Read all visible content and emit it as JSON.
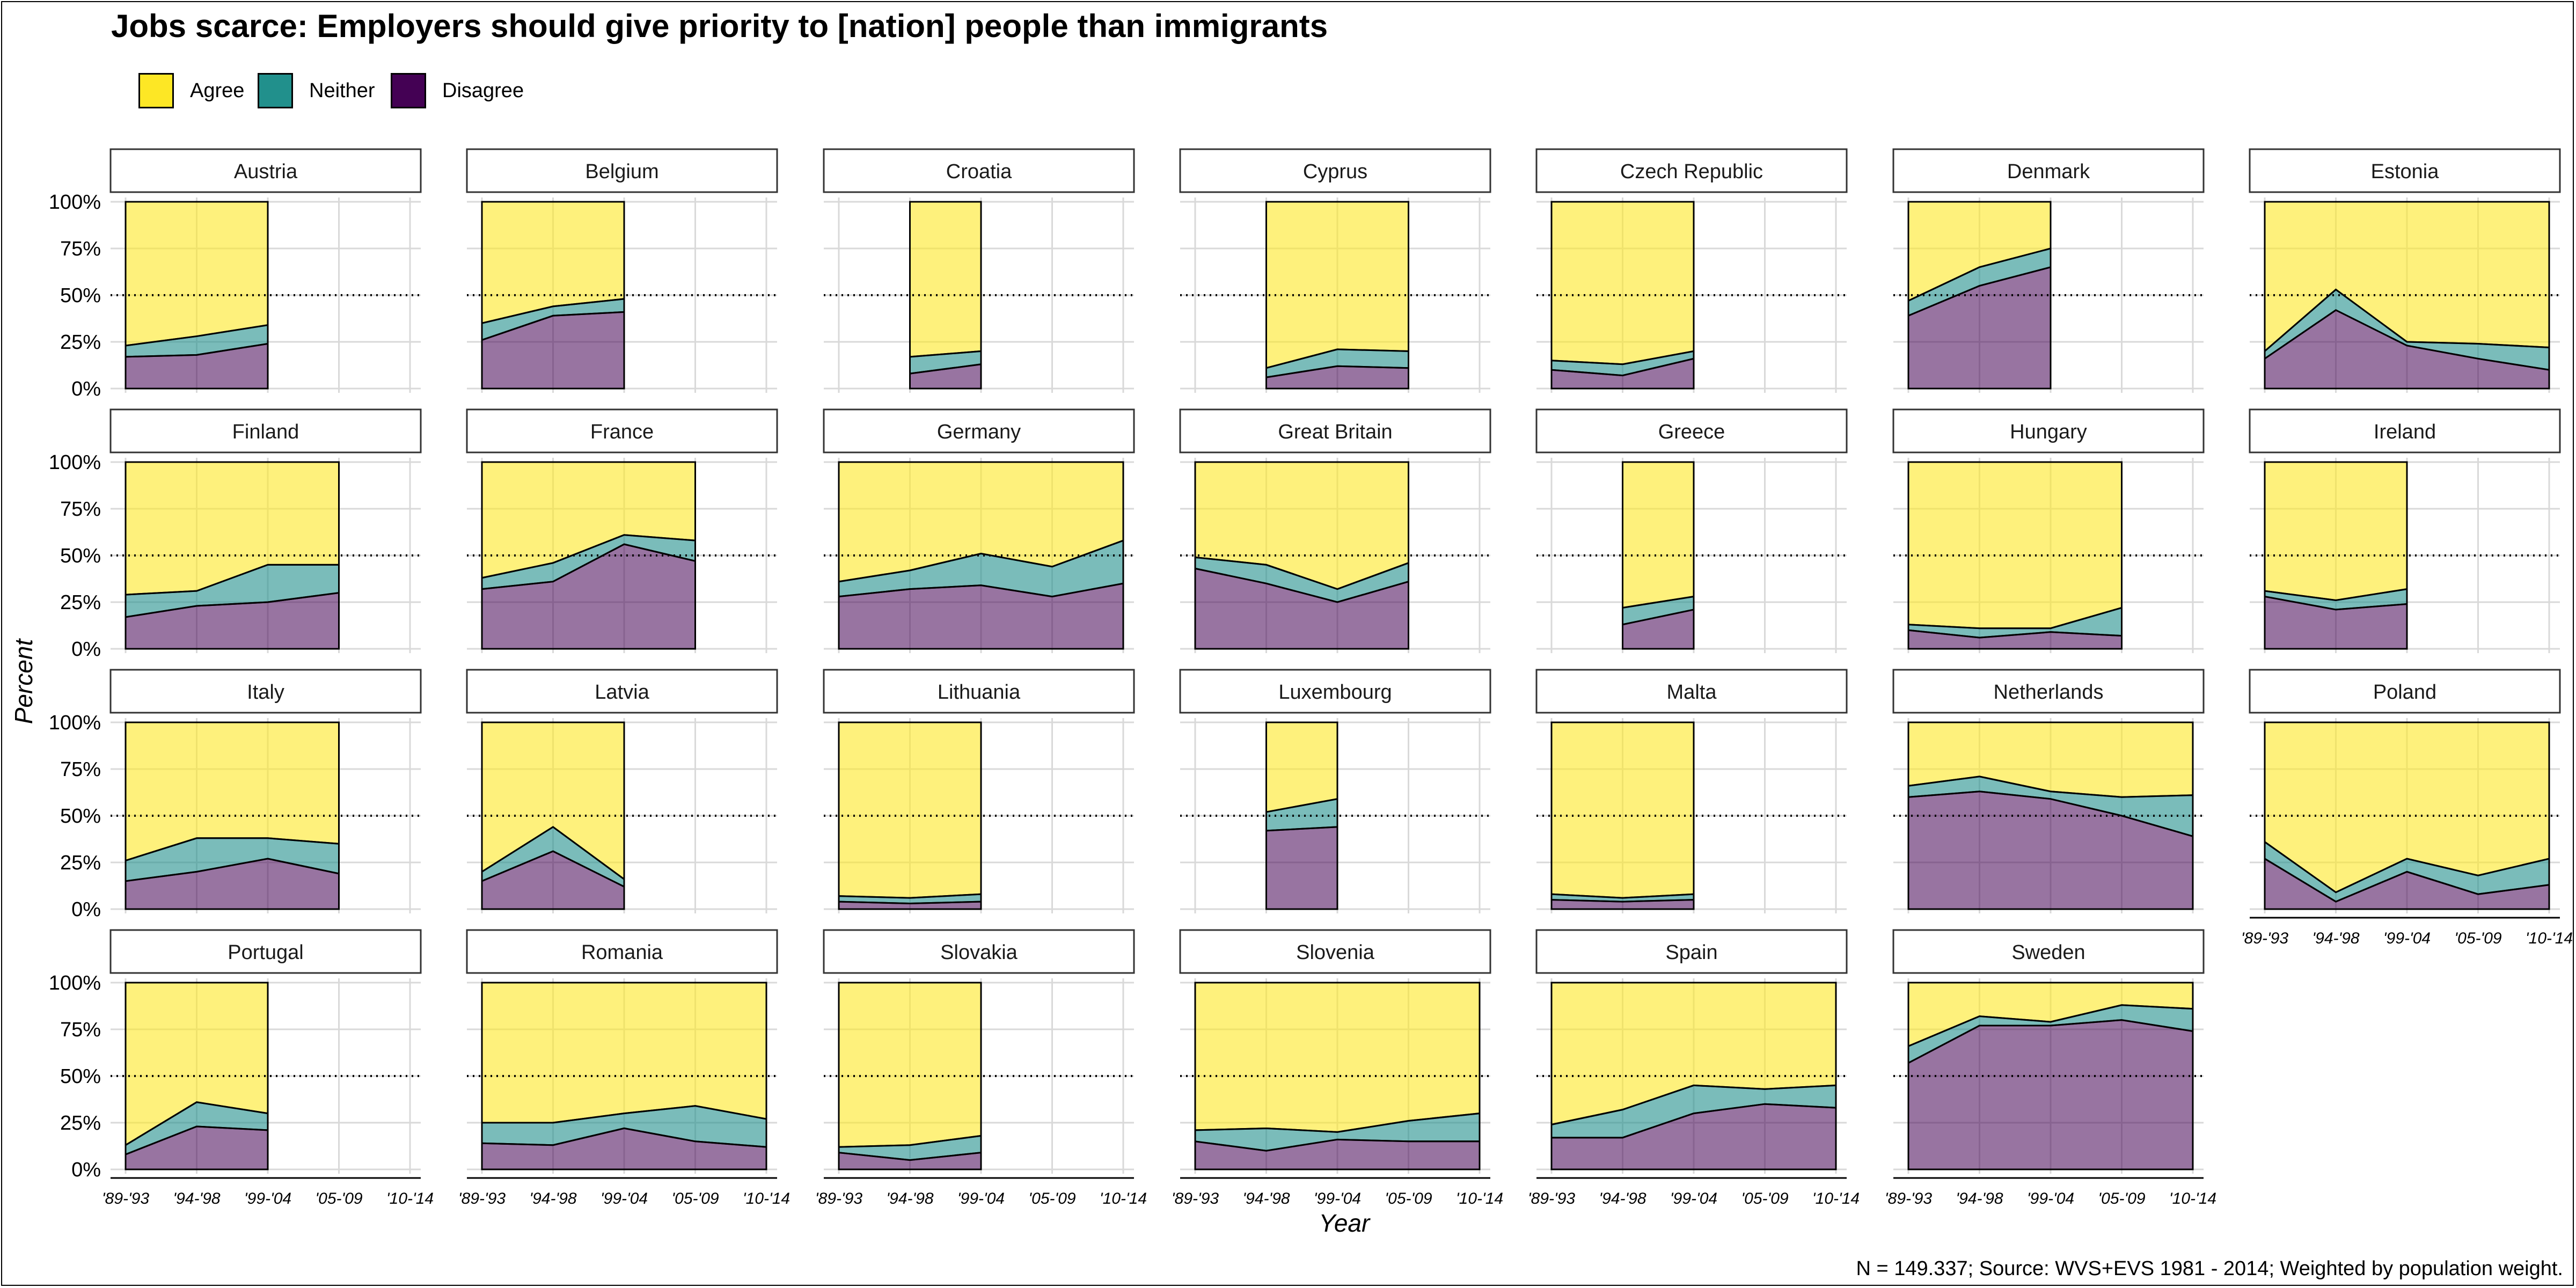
{
  "title": "Jobs scarce: Employers should give priority to [nation] people than immigrants",
  "caption": "N = 149.337; Source: WVS+EVS 1981 - 2014; Weighted by population weight.",
  "legend": [
    {
      "label": "Agree",
      "color": "#FDE725"
    },
    {
      "label": "Neither",
      "color": "#21908C"
    },
    {
      "label": "Disagree",
      "color": "#440154"
    }
  ],
  "chart_data": {
    "type": "area",
    "stacked": true,
    "facets": true,
    "xlabel": "Year",
    "ylabel": "Percent",
    "x": [
      "'89-'93",
      "'94-'98",
      "'99-'04",
      "'05-'09",
      "'10-'14"
    ],
    "y_ticks": [
      "0%",
      "25%",
      "50%",
      "75%",
      "100%"
    ],
    "ylim": [
      0,
      100
    ],
    "reference_line": 50,
    "series_order": [
      "Disagree",
      "Neither",
      "Agree"
    ],
    "panels": [
      {
        "country": "Austria",
        "points": [
          {
            "x": "'89-'93",
            "disagree": 17,
            "neither": 6
          },
          {
            "x": "'94-'98",
            "disagree": 18,
            "neither": 10
          },
          {
            "x": "'99-'04",
            "disagree": 24,
            "neither": 10
          }
        ]
      },
      {
        "country": "Belgium",
        "points": [
          {
            "x": "'89-'93",
            "disagree": 26,
            "neither": 9
          },
          {
            "x": "'94-'98",
            "disagree": 39,
            "neither": 5
          },
          {
            "x": "'99-'04",
            "disagree": 41,
            "neither": 7
          }
        ]
      },
      {
        "country": "Croatia",
        "points": [
          {
            "x": "'94-'98",
            "disagree": 8,
            "neither": 9
          },
          {
            "x": "'99-'04",
            "disagree": 13,
            "neither": 7
          }
        ]
      },
      {
        "country": "Cyprus",
        "points": [
          {
            "x": "'94-'98",
            "disagree": 6,
            "neither": 5
          },
          {
            "x": "'99-'04",
            "disagree": 12,
            "neither": 9
          },
          {
            "x": "'05-'09",
            "disagree": 11,
            "neither": 9
          }
        ]
      },
      {
        "country": "Czech Republic",
        "points": [
          {
            "x": "'89-'93",
            "disagree": 10,
            "neither": 5
          },
          {
            "x": "'94-'98",
            "disagree": 7,
            "neither": 6
          },
          {
            "x": "'99-'04",
            "disagree": 16,
            "neither": 4
          }
        ]
      },
      {
        "country": "Denmark",
        "points": [
          {
            "x": "'89-'93",
            "disagree": 39,
            "neither": 8
          },
          {
            "x": "'94-'98",
            "disagree": 55,
            "neither": 10
          },
          {
            "x": "'99-'04",
            "disagree": 65,
            "neither": 10
          }
        ]
      },
      {
        "country": "Estonia",
        "points": [
          {
            "x": "'89-'93",
            "disagree": 16,
            "neither": 4
          },
          {
            "x": "'94-'98",
            "disagree": 42,
            "neither": 11
          },
          {
            "x": "'99-'04",
            "disagree": 23,
            "neither": 2
          },
          {
            "x": "'05-'09",
            "disagree": 16,
            "neither": 8
          },
          {
            "x": "'10-'14",
            "disagree": 10,
            "neither": 12
          }
        ]
      },
      {
        "country": "Finland",
        "points": [
          {
            "x": "'89-'93",
            "disagree": 17,
            "neither": 12
          },
          {
            "x": "'94-'98",
            "disagree": 23,
            "neither": 8
          },
          {
            "x": "'99-'04",
            "disagree": 25,
            "neither": 20
          },
          {
            "x": "'05-'09",
            "disagree": 30,
            "neither": 15
          }
        ]
      },
      {
        "country": "France",
        "points": [
          {
            "x": "'89-'93",
            "disagree": 32,
            "neither": 6
          },
          {
            "x": "'94-'98",
            "disagree": 36,
            "neither": 10
          },
          {
            "x": "'99-'04",
            "disagree": 56,
            "neither": 5
          },
          {
            "x": "'05-'09",
            "disagree": 47,
            "neither": 11
          }
        ]
      },
      {
        "country": "Germany",
        "points": [
          {
            "x": "'89-'93",
            "disagree": 28,
            "neither": 8
          },
          {
            "x": "'94-'98",
            "disagree": 32,
            "neither": 10
          },
          {
            "x": "'99-'04",
            "disagree": 34,
            "neither": 17
          },
          {
            "x": "'05-'09",
            "disagree": 28,
            "neither": 16
          },
          {
            "x": "'10-'14",
            "disagree": 35,
            "neither": 23
          }
        ]
      },
      {
        "country": "Great Britain",
        "points": [
          {
            "x": "'89-'93",
            "disagree": 43,
            "neither": 6
          },
          {
            "x": "'94-'98",
            "disagree": 35,
            "neither": 10
          },
          {
            "x": "'99-'04",
            "disagree": 25,
            "neither": 7
          },
          {
            "x": "'05-'09",
            "disagree": 36,
            "neither": 10
          }
        ]
      },
      {
        "country": "Greece",
        "points": [
          {
            "x": "'94-'98",
            "disagree": 13,
            "neither": 9
          },
          {
            "x": "'99-'04",
            "disagree": 21,
            "neither": 7
          }
        ]
      },
      {
        "country": "Hungary",
        "points": [
          {
            "x": "'89-'93",
            "disagree": 10,
            "neither": 3
          },
          {
            "x": "'94-'98",
            "disagree": 6,
            "neither": 5
          },
          {
            "x": "'99-'04",
            "disagree": 9,
            "neither": 2
          },
          {
            "x": "'05-'09",
            "disagree": 7,
            "neither": 15
          }
        ]
      },
      {
        "country": "Ireland",
        "points": [
          {
            "x": "'89-'93",
            "disagree": 28,
            "neither": 3
          },
          {
            "x": "'94-'98",
            "disagree": 21,
            "neither": 5
          },
          {
            "x": "'99-'04",
            "disagree": 24,
            "neither": 8
          }
        ]
      },
      {
        "country": "Italy",
        "points": [
          {
            "x": "'89-'93",
            "disagree": 15,
            "neither": 11
          },
          {
            "x": "'94-'98",
            "disagree": 20,
            "neither": 18
          },
          {
            "x": "'99-'04",
            "disagree": 27,
            "neither": 11
          },
          {
            "x": "'05-'09",
            "disagree": 19,
            "neither": 16
          }
        ]
      },
      {
        "country": "Latvia",
        "points": [
          {
            "x": "'89-'93",
            "disagree": 15,
            "neither": 5
          },
          {
            "x": "'94-'98",
            "disagree": 31,
            "neither": 13
          },
          {
            "x": "'99-'04",
            "disagree": 12,
            "neither": 4
          }
        ]
      },
      {
        "country": "Lithuania",
        "points": [
          {
            "x": "'89-'93",
            "disagree": 4,
            "neither": 3
          },
          {
            "x": "'94-'98",
            "disagree": 3,
            "neither": 3
          },
          {
            "x": "'99-'04",
            "disagree": 4,
            "neither": 4
          }
        ]
      },
      {
        "country": "Luxembourg",
        "points": [
          {
            "x": "'94-'98",
            "disagree": 42,
            "neither": 10
          },
          {
            "x": "'99-'04",
            "disagree": 44,
            "neither": 15
          }
        ]
      },
      {
        "country": "Malta",
        "points": [
          {
            "x": "'89-'93",
            "disagree": 5,
            "neither": 3
          },
          {
            "x": "'94-'98",
            "disagree": 4,
            "neither": 2
          },
          {
            "x": "'99-'04",
            "disagree": 5,
            "neither": 3
          }
        ]
      },
      {
        "country": "Netherlands",
        "points": [
          {
            "x": "'89-'93",
            "disagree": 60,
            "neither": 6
          },
          {
            "x": "'94-'98",
            "disagree": 63,
            "neither": 8
          },
          {
            "x": "'99-'04",
            "disagree": 59,
            "neither": 4
          },
          {
            "x": "'05-'09",
            "disagree": 50,
            "neither": 10
          },
          {
            "x": "'10-'14",
            "disagree": 39,
            "neither": 22
          }
        ]
      },
      {
        "country": "Poland",
        "points": [
          {
            "x": "'89-'93",
            "disagree": 27,
            "neither": 9
          },
          {
            "x": "'94-'98",
            "disagree": 4,
            "neither": 5
          },
          {
            "x": "'99-'04",
            "disagree": 20,
            "neither": 7
          },
          {
            "x": "'05-'09",
            "disagree": 8,
            "neither": 10
          },
          {
            "x": "'10-'14",
            "disagree": 13,
            "neither": 14
          }
        ]
      },
      {
        "country": "Portugal",
        "points": [
          {
            "x": "'89-'93",
            "disagree": 8,
            "neither": 5
          },
          {
            "x": "'94-'98",
            "disagree": 23,
            "neither": 13
          },
          {
            "x": "'99-'04",
            "disagree": 21,
            "neither": 9
          }
        ]
      },
      {
        "country": "Romania",
        "points": [
          {
            "x": "'89-'93",
            "disagree": 14,
            "neither": 11
          },
          {
            "x": "'94-'98",
            "disagree": 13,
            "neither": 12
          },
          {
            "x": "'99-'04",
            "disagree": 22,
            "neither": 8
          },
          {
            "x": "'05-'09",
            "disagree": 15,
            "neither": 19
          },
          {
            "x": "'10-'14",
            "disagree": 12,
            "neither": 15
          }
        ]
      },
      {
        "country": "Slovakia",
        "points": [
          {
            "x": "'89-'93",
            "disagree": 9,
            "neither": 3
          },
          {
            "x": "'94-'98",
            "disagree": 5,
            "neither": 8
          },
          {
            "x": "'99-'04",
            "disagree": 9,
            "neither": 9
          }
        ]
      },
      {
        "country": "Slovenia",
        "points": [
          {
            "x": "'89-'93",
            "disagree": 15,
            "neither": 6
          },
          {
            "x": "'94-'98",
            "disagree": 10,
            "neither": 12
          },
          {
            "x": "'99-'04",
            "disagree": 16,
            "neither": 4
          },
          {
            "x": "'05-'09",
            "disagree": 15,
            "neither": 11
          },
          {
            "x": "'10-'14",
            "disagree": 15,
            "neither": 15
          }
        ]
      },
      {
        "country": "Spain",
        "points": [
          {
            "x": "'89-'93",
            "disagree": 17,
            "neither": 7
          },
          {
            "x": "'94-'98",
            "disagree": 17,
            "neither": 15
          },
          {
            "x": "'99-'04",
            "disagree": 30,
            "neither": 15
          },
          {
            "x": "'05-'09",
            "disagree": 35,
            "neither": 8
          },
          {
            "x": "'10-'14",
            "disagree": 33,
            "neither": 12
          }
        ]
      },
      {
        "country": "Sweden",
        "points": [
          {
            "x": "'89-'93",
            "disagree": 57,
            "neither": 9
          },
          {
            "x": "'94-'98",
            "disagree": 77,
            "neither": 5
          },
          {
            "x": "'99-'04",
            "disagree": 77,
            "neither": 2
          },
          {
            "x": "'05-'09",
            "disagree": 80,
            "neither": 8
          },
          {
            "x": "'10-'14",
            "disagree": 74,
            "neither": 12
          }
        ]
      }
    ]
  }
}
